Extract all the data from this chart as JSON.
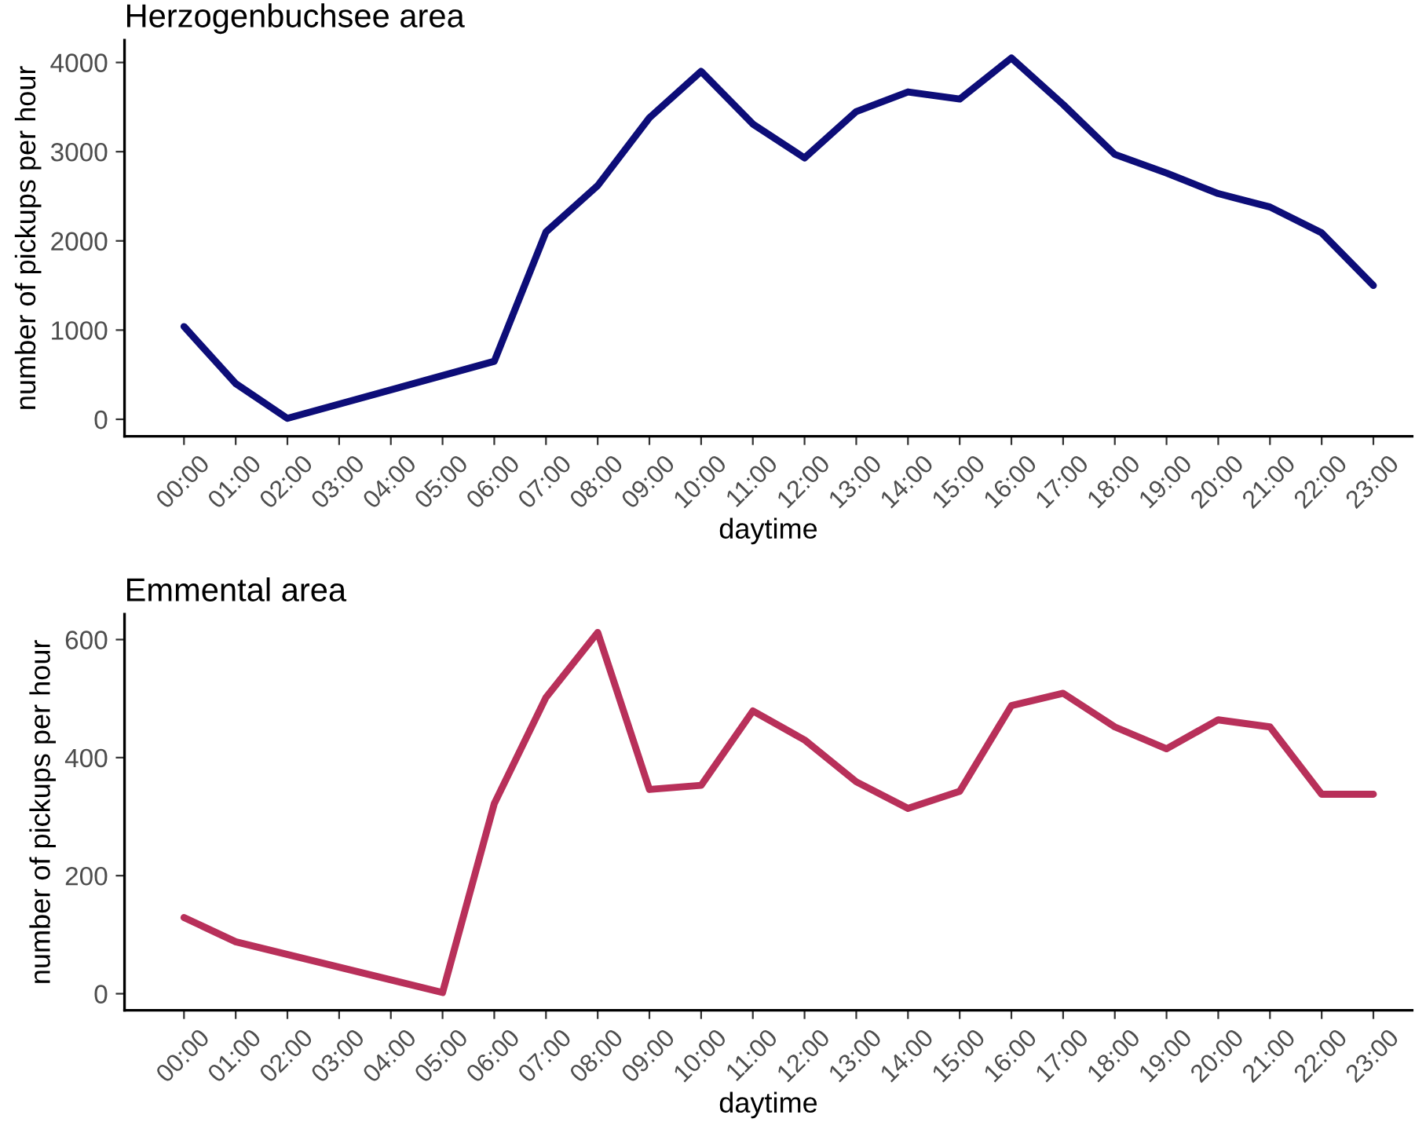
{
  "chart_data": [
    {
      "type": "line",
      "title": "Herzogenbuchsee area",
      "xlabel": "daytime",
      "ylabel": "number of pickups per hour",
      "x": [
        0,
        1,
        2,
        6,
        7,
        8,
        9,
        10,
        11,
        12,
        13,
        14,
        15,
        16,
        17,
        18,
        19,
        20,
        21,
        22,
        23
      ],
      "series": [
        {
          "color": "#0d0d78",
          "values": [
            1040,
            400,
            10,
            650,
            2100,
            2620,
            3380,
            3900,
            3310,
            2930,
            3450,
            3670,
            3590,
            4050,
            3530,
            2970,
            2760,
            2530,
            2380,
            2090,
            1500
          ]
        }
      ],
      "xlim": [
        -1.15,
        23.75
      ],
      "xticks": [
        {
          "value": 0,
          "label": "00:00"
        },
        {
          "value": 1,
          "label": "01:00"
        },
        {
          "value": 2,
          "label": "02:00"
        },
        {
          "value": 3,
          "label": "03:00"
        },
        {
          "value": 4,
          "label": "04:00"
        },
        {
          "value": 5,
          "label": "05:00"
        },
        {
          "value": 6,
          "label": "06:00"
        },
        {
          "value": 7,
          "label": "07:00"
        },
        {
          "value": 8,
          "label": "08:00"
        },
        {
          "value": 9,
          "label": "09:00"
        },
        {
          "value": 10,
          "label": "10:00"
        },
        {
          "value": 11,
          "label": "11:00"
        },
        {
          "value": 12,
          "label": "12:00"
        },
        {
          "value": 13,
          "label": "13:00"
        },
        {
          "value": 14,
          "label": "14:00"
        },
        {
          "value": 15,
          "label": "15:00"
        },
        {
          "value": 16,
          "label": "16:00"
        },
        {
          "value": 17,
          "label": "17:00"
        },
        {
          "value": 18,
          "label": "18:00"
        },
        {
          "value": 19,
          "label": "19:00"
        },
        {
          "value": 20,
          "label": "20:00"
        },
        {
          "value": 21,
          "label": "21:00"
        },
        {
          "value": 22,
          "label": "22:00"
        },
        {
          "value": 23,
          "label": "23:00"
        }
      ],
      "ylim": [
        -190,
        4250
      ],
      "yticks": [
        0,
        1000,
        2000,
        3000,
        4000
      ],
      "line_style": "solid"
    },
    {
      "type": "line",
      "title": "Emmental area",
      "xlabel": "daytime",
      "ylabel": "number of pickups per hour",
      "x": [
        0,
        1,
        5,
        6,
        7,
        8,
        9,
        10,
        11,
        12,
        13,
        14,
        15,
        16,
        17,
        18,
        19,
        20,
        21,
        22,
        23
      ],
      "series": [
        {
          "color": "#b8305a",
          "values": [
            129,
            88,
            2,
            322,
            502,
            612,
            346,
            353,
            479,
            430,
            359,
            314,
            343,
            488,
            509,
            452,
            415,
            464,
            452,
            338,
            338
          ]
        }
      ],
      "xlim": [
        -1.15,
        23.75
      ],
      "xticks": [
        {
          "value": 0,
          "label": "00:00"
        },
        {
          "value": 1,
          "label": "01:00"
        },
        {
          "value": 2,
          "label": "02:00"
        },
        {
          "value": 3,
          "label": "03:00"
        },
        {
          "value": 4,
          "label": "04:00"
        },
        {
          "value": 5,
          "label": "05:00"
        },
        {
          "value": 6,
          "label": "06:00"
        },
        {
          "value": 7,
          "label": "07:00"
        },
        {
          "value": 8,
          "label": "08:00"
        },
        {
          "value": 9,
          "label": "09:00"
        },
        {
          "value": 10,
          "label": "10:00"
        },
        {
          "value": 11,
          "label": "11:00"
        },
        {
          "value": 12,
          "label": "12:00"
        },
        {
          "value": 13,
          "label": "13:00"
        },
        {
          "value": 14,
          "label": "14:00"
        },
        {
          "value": 15,
          "label": "15:00"
        },
        {
          "value": 16,
          "label": "16:00"
        },
        {
          "value": 17,
          "label": "17:00"
        },
        {
          "value": 18,
          "label": "18:00"
        },
        {
          "value": 19,
          "label": "19:00"
        },
        {
          "value": 20,
          "label": "20:00"
        },
        {
          "value": 21,
          "label": "21:00"
        },
        {
          "value": 22,
          "label": "22:00"
        },
        {
          "value": 23,
          "label": "23:00"
        }
      ],
      "ylim": [
        -28,
        643
      ],
      "yticks": [
        0,
        200,
        400,
        600
      ],
      "line_style": "solid"
    }
  ]
}
